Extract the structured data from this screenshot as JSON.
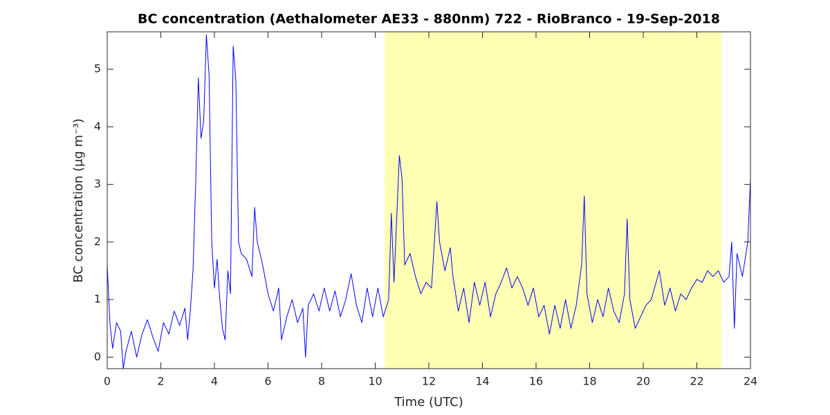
{
  "chart_data": {
    "type": "line",
    "title": "BC concentration (Aethalometer AE33 - 880nm) 722 - RioBranco - 19-Sep-2018",
    "x_label": "Time (UTC)",
    "y_label": "BC concentration (μg m⁻³)",
    "xlim": [
      0,
      24
    ],
    "xticks": [
      0,
      2,
      4,
      6,
      8,
      10,
      12,
      14,
      16,
      18,
      20,
      22,
      24
    ],
    "ylim": [
      -0.2,
      5.65
    ],
    "yticks": [
      0,
      1,
      2,
      3,
      4,
      5
    ],
    "shade": [
      10.35,
      22.92
    ],
    "shade_color": "#ffffb3",
    "x": [
      0,
      0.1,
      0.2,
      0.35,
      0.5,
      0.6,
      0.7,
      0.9,
      1.1,
      1.3,
      1.5,
      1.7,
      1.9,
      2.1,
      2.3,
      2.5,
      2.7,
      2.9,
      3.0,
      3.1,
      3.2,
      3.3,
      3.4,
      3.5,
      3.6,
      3.7,
      3.8,
      3.9,
      4.0,
      4.1,
      4.2,
      4.3,
      4.4,
      4.5,
      4.6,
      4.7,
      4.8,
      4.9,
      5.0,
      5.2,
      5.4,
      5.5,
      5.6,
      5.8,
      6.0,
      6.2,
      6.4,
      6.5,
      6.7,
      6.9,
      7.1,
      7.3,
      7.4,
      7.5,
      7.7,
      7.9,
      8.1,
      8.3,
      8.5,
      8.7,
      8.9,
      9.1,
      9.3,
      9.5,
      9.7,
      9.9,
      10.1,
      10.3,
      10.5,
      10.6,
      10.7,
      10.9,
      11.0,
      11.1,
      11.3,
      11.5,
      11.7,
      11.9,
      12.1,
      12.3,
      12.4,
      12.6,
      12.8,
      12.9,
      13.1,
      13.3,
      13.5,
      13.7,
      13.9,
      14.1,
      14.3,
      14.5,
      14.7,
      14.9,
      15.1,
      15.3,
      15.5,
      15.7,
      15.9,
      16.1,
      16.3,
      16.5,
      16.7,
      16.9,
      17.1,
      17.3,
      17.5,
      17.7,
      17.8,
      17.9,
      18.1,
      18.3,
      18.5,
      18.7,
      18.9,
      19.1,
      19.3,
      19.4,
      19.5,
      19.7,
      19.9,
      20.1,
      20.3,
      20.6,
      20.8,
      21.0,
      21.2,
      21.4,
      21.6,
      21.8,
      22.0,
      22.2,
      22.4,
      22.6,
      22.8,
      23.0,
      23.2,
      23.3,
      23.4,
      23.5,
      23.7,
      23.9,
      24.0
    ],
    "series": [
      {
        "color": "#0000ff",
        "values": [
          1.6,
          0.6,
          0.15,
          0.6,
          0.45,
          -0.2,
          0.1,
          0.45,
          0.0,
          0.4,
          0.65,
          0.35,
          0.1,
          0.6,
          0.4,
          0.8,
          0.55,
          0.85,
          0.3,
          0.8,
          1.5,
          3.0,
          4.85,
          3.8,
          4.1,
          5.6,
          4.9,
          2.0,
          1.2,
          1.7,
          1.0,
          0.5,
          0.3,
          1.5,
          1.1,
          5.4,
          4.8,
          2.0,
          1.8,
          1.7,
          1.4,
          2.6,
          2.0,
          1.6,
          1.1,
          0.8,
          1.2,
          0.3,
          0.7,
          1.0,
          0.6,
          0.85,
          0.0,
          0.9,
          1.1,
          0.8,
          1.2,
          0.8,
          1.15,
          0.7,
          1.0,
          1.45,
          0.9,
          0.6,
          1.2,
          0.7,
          1.2,
          0.7,
          1.0,
          2.5,
          1.3,
          3.5,
          3.1,
          1.6,
          1.8,
          1.4,
          1.1,
          1.3,
          1.2,
          2.7,
          2.0,
          1.5,
          1.9,
          1.4,
          0.8,
          1.2,
          0.6,
          1.3,
          0.9,
          1.3,
          0.7,
          1.1,
          1.3,
          1.55,
          1.2,
          1.4,
          1.2,
          0.9,
          1.2,
          0.7,
          0.9,
          0.4,
          0.9,
          0.5,
          1.0,
          0.5,
          0.9,
          1.6,
          2.8,
          1.1,
          0.6,
          1.0,
          0.7,
          1.2,
          0.8,
          0.6,
          1.1,
          2.4,
          1.0,
          0.5,
          0.7,
          0.9,
          1.0,
          1.5,
          0.9,
          1.2,
          0.8,
          1.1,
          1.0,
          1.2,
          1.35,
          1.3,
          1.5,
          1.4,
          1.5,
          1.3,
          1.4,
          2.0,
          0.5,
          1.8,
          1.4,
          2.0,
          3.1
        ]
      }
    ]
  }
}
